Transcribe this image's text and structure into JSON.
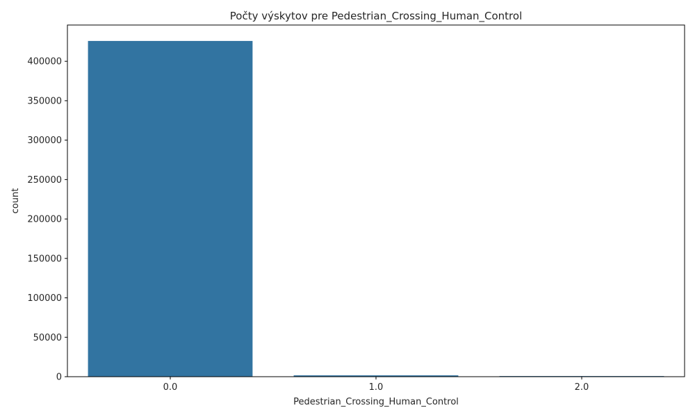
{
  "chart_data": {
    "type": "bar",
    "title": "Počty výskytov pre Pedestrian_Crossing_Human_Control",
    "xlabel": "Pedestrian_Crossing_Human_Control",
    "ylabel": "count",
    "categories": [
      "0.0",
      "1.0",
      "2.0"
    ],
    "values": [
      425800,
      1700,
      800
    ],
    "ylim": [
      0,
      446000
    ],
    "yticks": [
      0,
      50000,
      100000,
      150000,
      200000,
      250000,
      300000,
      350000,
      400000
    ],
    "bar_color": "#3274a1",
    "grid": false,
    "legend": "none"
  }
}
